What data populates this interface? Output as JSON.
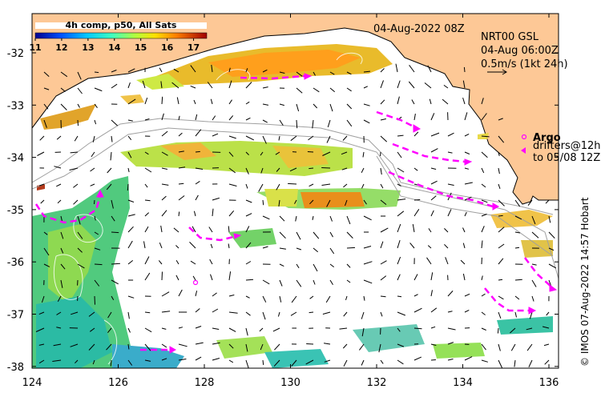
{
  "map": {
    "date_label": "04-Aug-2022 08Z",
    "product_lines": [
      "NRT00 GSL",
      "04-Aug 06:00Z",
      "0.5m/s (1kt 24h)"
    ],
    "colorbar": {
      "title": "4h comp, p50, All Sats",
      "ticks": [
        "11",
        "12",
        "13",
        "14",
        "15",
        "16",
        "17"
      ],
      "range": [
        11,
        17.5
      ]
    },
    "legend": {
      "argo_label": "Argo",
      "drifter_line1": "drifters@12h",
      "drifter_line2": "to 05/08 12Z"
    },
    "credit": "© IMOS 07-Aug-2022 14:57 Hobart",
    "lon_ticks": [
      "124",
      "126",
      "128",
      "130",
      "132",
      "134",
      "136"
    ],
    "lat_ticks": [
      "-32",
      "-33",
      "-34",
      "-35",
      "-36",
      "-37",
      "-38"
    ],
    "colors": {
      "land": "#fdc896",
      "drifter": "#ff00ff",
      "argo": "#ff00ff"
    }
  }
}
